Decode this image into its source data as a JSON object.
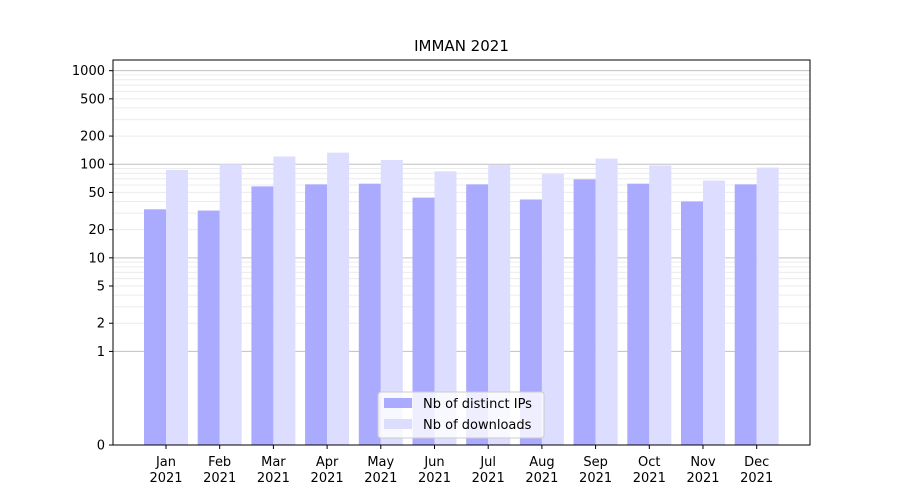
{
  "chart_data": {
    "type": "bar",
    "title": "IMMAN 2021",
    "xlabel": "",
    "ylabel": "",
    "y_scale": "symlog",
    "ylim": [
      0,
      1300
    ],
    "yticks": [
      "0",
      "1",
      "2",
      "5",
      "10",
      "20",
      "50",
      "100",
      "200",
      "500",
      "1000"
    ],
    "grid": true,
    "legend_position": "lower center",
    "categories": [
      [
        "Jan",
        "2021"
      ],
      [
        "Feb",
        "2021"
      ],
      [
        "Mar",
        "2021"
      ],
      [
        "Apr",
        "2021"
      ],
      [
        "May",
        "2021"
      ],
      [
        "Jun",
        "2021"
      ],
      [
        "Jul",
        "2021"
      ],
      [
        "Aug",
        "2021"
      ],
      [
        "Sep",
        "2021"
      ],
      [
        "Oct",
        "2021"
      ],
      [
        "Nov",
        "2021"
      ],
      [
        "Dec",
        "2021"
      ]
    ],
    "series": [
      {
        "name": "Nb of distinct IPs",
        "color": "#aaaaff",
        "values": [
          33,
          32,
          58,
          61,
          62,
          44,
          61,
          42,
          69,
          62,
          40,
          61
        ]
      },
      {
        "name": "Nb of downloads",
        "color": "#ddddff",
        "values": [
          87,
          100,
          121,
          133,
          111,
          84,
          98,
          79,
          115,
          97,
          67,
          92
        ]
      }
    ]
  }
}
